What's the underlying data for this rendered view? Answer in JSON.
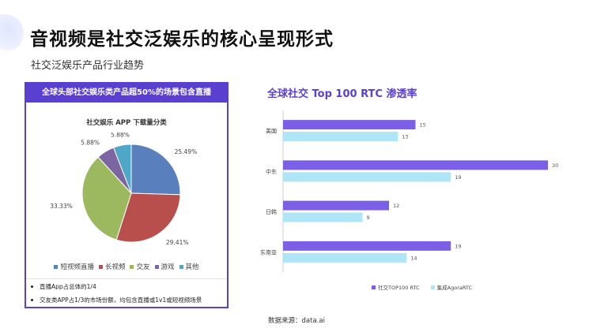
{
  "title": "音视频是社交泛娱乐的核心呈现形式",
  "subtitle": "社交泛娱乐产品行业趋势",
  "left_card": {
    "header": "全球头部社交娱乐类产品超50%的场景包含直播",
    "bullets": [
      "直播App占总体的1/4",
      "交友类APP占1/3的市场份额，均包含直播或1v1或短视频场景"
    ]
  },
  "right_title": "全球社交 Top 100 RTC 渗透率",
  "source": "数据来源：data.ai",
  "chart_data": [
    {
      "type": "pie",
      "title": "社交娱乐 APP 下载量分类",
      "slices": [
        {
          "name": "短视频直播",
          "value": 25.49,
          "label": "25.49%",
          "color": "#5a7fbd"
        },
        {
          "name": "长视频",
          "value": 29.41,
          "label": "29.41%",
          "color": "#b94f4d"
        },
        {
          "name": "交友",
          "value": 33.33,
          "label": "33.33%",
          "color": "#9cb960"
        },
        {
          "name": "游戏",
          "value": 5.88,
          "label": "5.88%",
          "color": "#7c65a3"
        },
        {
          "name": "其他",
          "value": 5.88,
          "label": "5.88%",
          "color": "#4ea7c6"
        }
      ],
      "legend_position": "bottom"
    },
    {
      "type": "bar",
      "orientation": "horizontal",
      "title": "全球社交 Top 100 RTC 渗透率",
      "categories": [
        "美国",
        "中东",
        "日韩",
        "东南亚"
      ],
      "series": [
        {
          "name": "社交TOP100 RTC",
          "values": [
            15,
            30,
            12,
            19
          ],
          "color": "#7b5fe6"
        },
        {
          "name": "集成AgoraRTC",
          "values": [
            13,
            19,
            9,
            14
          ],
          "color": "#aee6f8"
        }
      ],
      "xlim": [
        0,
        30
      ],
      "legend_position": "bottom"
    }
  ]
}
